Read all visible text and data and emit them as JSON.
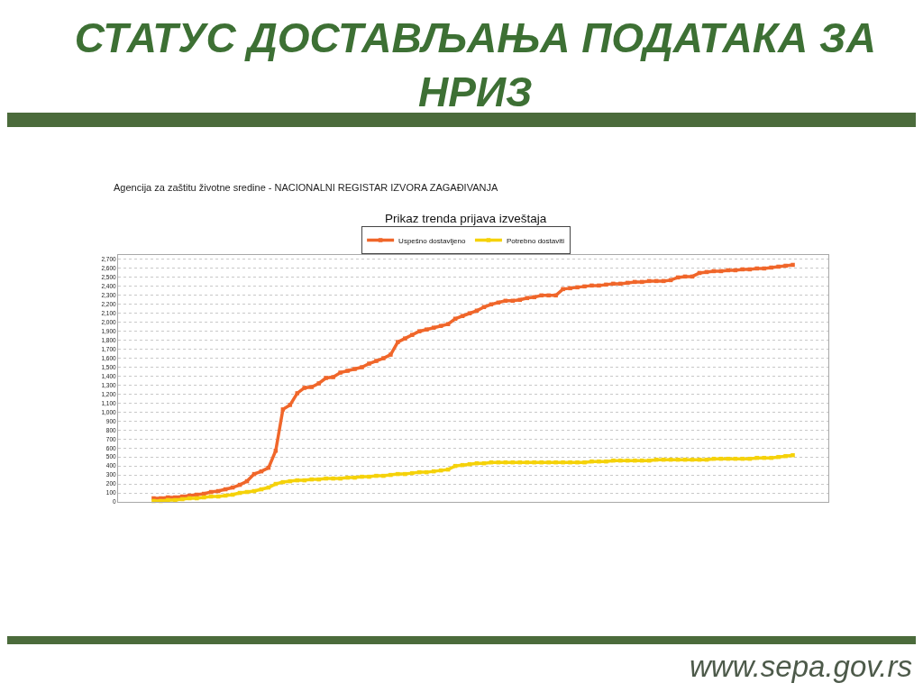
{
  "chart_data": {
    "type": "line",
    "title": "СТАТУС ДОСТАВЉАЊА ПОДАТАКА ЗА НРИЗ",
    "subtitle": "Prikaz trenda prijava izveštaja",
    "annotations": [
      "Agencija za zaštitu životne sredine - NACIONALNI REGISTAR IZVORA ZAGAĐIVANJA",
      "www.sepa.gov.rs"
    ],
    "categories": [
      null,
      null,
      null,
      null,
      null,
      null,
      null,
      null,
      null,
      null,
      null,
      null,
      null,
      null,
      null,
      null,
      null,
      null,
      null,
      null,
      null,
      null,
      null,
      null,
      null,
      null,
      null,
      null,
      null,
      null,
      null,
      null,
      null,
      null,
      null,
      null,
      null,
      null,
      null,
      null,
      null,
      null,
      null,
      null,
      null,
      null,
      null,
      null,
      null,
      null,
      null,
      null,
      null,
      null,
      null,
      null,
      null,
      null,
      null,
      null,
      null,
      null,
      null,
      null,
      null,
      null,
      null,
      null,
      null,
      null,
      null,
      null,
      null,
      null,
      null,
      null,
      null,
      null,
      null,
      null,
      null,
      null,
      null,
      null,
      null,
      null,
      null,
      null,
      null,
      null
    ],
    "series": [
      {
        "name": "Uspešno dostavljeno",
        "color": "#f0662a",
        "values": [
          40,
          40,
          50,
          50,
          60,
          70,
          80,
          90,
          110,
          120,
          140,
          160,
          190,
          230,
          310,
          340,
          380,
          570,
          1030,
          1080,
          1210,
          1270,
          1280,
          1320,
          1380,
          1390,
          1440,
          1460,
          1480,
          1500,
          1540,
          1570,
          1600,
          1640,
          1780,
          1820,
          1860,
          1900,
          1920,
          1940,
          1960,
          1980,
          2040,
          2070,
          2100,
          2130,
          2170,
          2200,
          2220,
          2240,
          2240,
          2250,
          2270,
          2280,
          2300,
          2300,
          2300,
          2370,
          2380,
          2390,
          2400,
          2410,
          2410,
          2420,
          2430,
          2430,
          2440,
          2450,
          2450,
          2460,
          2460,
          2460,
          2470,
          2500,
          2510,
          2510,
          2550,
          2560,
          2570,
          2570,
          2580,
          2580,
          2590,
          2590,
          2600,
          2600,
          2610,
          2620,
          2630,
          2640
        ]
      },
      {
        "name": "Potrebno dostaviti",
        "color": "#f5d20a",
        "values": [
          10,
          10,
          20,
          20,
          30,
          40,
          40,
          50,
          60,
          60,
          70,
          80,
          100,
          110,
          120,
          140,
          160,
          200,
          220,
          230,
          240,
          240,
          250,
          250,
          260,
          260,
          260,
          270,
          270,
          280,
          280,
          290,
          290,
          300,
          310,
          310,
          320,
          330,
          330,
          340,
          350,
          360,
          400,
          410,
          420,
          430,
          430,
          440,
          440,
          440,
          440,
          440,
          440,
          440,
          440,
          440,
          440,
          440,
          440,
          440,
          440,
          450,
          450,
          450,
          460,
          460,
          460,
          460,
          460,
          460,
          470,
          470,
          470,
          470,
          470,
          470,
          470,
          470,
          480,
          480,
          480,
          480,
          480,
          480,
          490,
          490,
          490,
          500,
          510,
          520
        ]
      }
    ],
    "marker": "square",
    "ylim": [
      0,
      2750
    ],
    "yticks": [
      0,
      100,
      200,
      300,
      400,
      500,
      600,
      700,
      800,
      900,
      {
        "value": 1000,
        "label": "1,000"
      },
      {
        "value": 1100,
        "label": "1,100"
      },
      {
        "value": 1200,
        "label": "1,200"
      },
      {
        "value": 1300,
        "label": "1,300"
      },
      {
        "value": 1400,
        "label": "1,400"
      },
      {
        "value": 1500,
        "label": "1,500"
      },
      {
        "value": 1600,
        "label": "1,600"
      },
      {
        "value": 1700,
        "label": "1,700"
      },
      {
        "value": 1800,
        "label": "1,800"
      },
      {
        "value": 1900,
        "label": "1,900"
      },
      {
        "value": 2000,
        "label": "2,000"
      },
      {
        "value": 2100,
        "label": "2,100"
      },
      {
        "value": 2200,
        "label": "2,200"
      },
      {
        "value": 2300,
        "label": "2,300"
      },
      {
        "value": 2400,
        "label": "2,400"
      },
      {
        "value": 2500,
        "label": "2,500"
      },
      {
        "value": 2600,
        "label": "2,600"
      },
      {
        "value": 2700,
        "label": "2,700"
      }
    ],
    "grid": "y",
    "legend": "top"
  }
}
